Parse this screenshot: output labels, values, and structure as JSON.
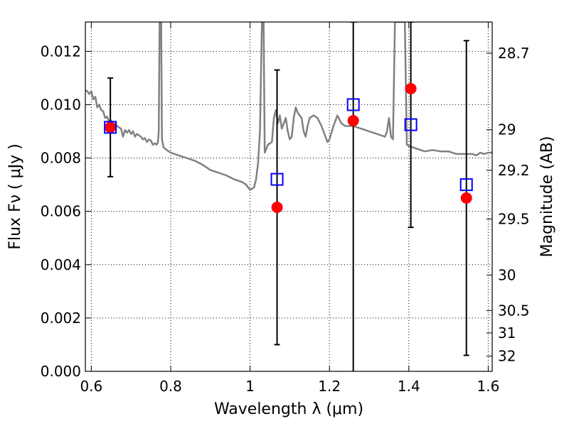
{
  "chart_data": {
    "type": "scatter",
    "xlabel": "Wavelength  λ (μm)",
    "ylabel": "Flux  Fν  ( μJy )",
    "y2label": "Magnitude (AB)",
    "xlim": [
      0.585,
      1.61
    ],
    "ylim": [
      0.0,
      0.0131
    ],
    "grid": true,
    "x_ticks": [
      {
        "value": 0.6,
        "label": "0.6"
      },
      {
        "value": 0.8,
        "label": "0.8"
      },
      {
        "value": 1.0,
        "label": "1"
      },
      {
        "value": 1.2,
        "label": "1.2"
      },
      {
        "value": 1.4,
        "label": "1.4"
      },
      {
        "value": 1.6,
        "label": "1.6"
      }
    ],
    "y_ticks": [
      {
        "value": 0.0,
        "label": "0.000"
      },
      {
        "value": 0.002,
        "label": "0.002"
      },
      {
        "value": 0.004,
        "label": "0.004"
      },
      {
        "value": 0.006,
        "label": "0.006"
      },
      {
        "value": 0.008,
        "label": "0.008"
      },
      {
        "value": 0.01,
        "label": "0.010"
      },
      {
        "value": 0.012,
        "label": "0.012"
      }
    ],
    "y2_ticks": [
      {
        "flux": 0.01193,
        "label": "28.7"
      },
      {
        "flux": 0.00906,
        "label": "29"
      },
      {
        "flux": 0.00754,
        "label": "29.2"
      },
      {
        "flux": 0.00571,
        "label": "29.5"
      },
      {
        "flux": 0.00361,
        "label": "30"
      },
      {
        "flux": 0.00228,
        "label": "30.5"
      },
      {
        "flux": 0.00144,
        "label": "31"
      },
      {
        "flux": 0.00057,
        "label": "32"
      }
    ],
    "series": [
      {
        "kind": "line",
        "color": "#808080",
        "points": [
          [
            0.585,
            0.01055
          ],
          [
            0.59,
            0.0105
          ],
          [
            0.595,
            0.0104
          ],
          [
            0.6,
            0.0105
          ],
          [
            0.605,
            0.0102
          ],
          [
            0.61,
            0.0103
          ],
          [
            0.615,
            0.0099
          ],
          [
            0.62,
            0.01
          ],
          [
            0.625,
            0.0098
          ],
          [
            0.63,
            0.00975
          ],
          [
            0.635,
            0.0095
          ],
          [
            0.64,
            0.00955
          ],
          [
            0.645,
            0.00935
          ],
          [
            0.65,
            0.0094
          ],
          [
            0.655,
            0.0092
          ],
          [
            0.66,
            0.0093
          ],
          [
            0.665,
            0.0092
          ],
          [
            0.67,
            0.00915
          ],
          [
            0.675,
            0.0091
          ],
          [
            0.68,
            0.0088
          ],
          [
            0.685,
            0.00905
          ],
          [
            0.69,
            0.00895
          ],
          [
            0.695,
            0.00905
          ],
          [
            0.7,
            0.0089
          ],
          [
            0.705,
            0.009
          ],
          [
            0.71,
            0.0088
          ],
          [
            0.715,
            0.0089
          ],
          [
            0.72,
            0.00885
          ],
          [
            0.725,
            0.0088
          ],
          [
            0.73,
            0.0087
          ],
          [
            0.735,
            0.00875
          ],
          [
            0.74,
            0.0086
          ],
          [
            0.745,
            0.0087
          ],
          [
            0.75,
            0.00865
          ],
          [
            0.755,
            0.0085
          ],
          [
            0.76,
            0.00855
          ],
          [
            0.765,
            0.0085
          ],
          [
            0.768,
            0.0086
          ],
          [
            0.77,
            0.009
          ],
          [
            0.772,
            0.0131
          ],
          [
            0.776,
            0.0131
          ],
          [
            0.778,
            0.0087
          ],
          [
            0.782,
            0.0084
          ],
          [
            0.79,
            0.0083
          ],
          [
            0.8,
            0.0082
          ],
          [
            0.81,
            0.00815
          ],
          [
            0.82,
            0.0081
          ],
          [
            0.84,
            0.008
          ],
          [
            0.86,
            0.0079
          ],
          [
            0.88,
            0.00775
          ],
          [
            0.9,
            0.00755
          ],
          [
            0.92,
            0.00745
          ],
          [
            0.94,
            0.00735
          ],
          [
            0.96,
            0.0072
          ],
          [
            0.98,
            0.0071
          ],
          [
            0.99,
            0.007
          ],
          [
            1.0,
            0.0068
          ],
          [
            1.01,
            0.0069
          ],
          [
            1.015,
            0.0072
          ],
          [
            1.02,
            0.0078
          ],
          [
            1.025,
            0.009
          ],
          [
            1.03,
            0.0131
          ],
          [
            1.034,
            0.0131
          ],
          [
            1.037,
            0.0082
          ],
          [
            1.045,
            0.0085
          ],
          [
            1.055,
            0.0086
          ],
          [
            1.06,
            0.0095
          ],
          [
            1.065,
            0.0098
          ],
          [
            1.07,
            0.0093
          ],
          [
            1.075,
            0.0096
          ],
          [
            1.08,
            0.0091
          ],
          [
            1.09,
            0.0095
          ],
          [
            1.095,
            0.009
          ],
          [
            1.1,
            0.0087
          ],
          [
            1.105,
            0.0088
          ],
          [
            1.11,
            0.0095
          ],
          [
            1.115,
            0.0099
          ],
          [
            1.12,
            0.0097
          ],
          [
            1.13,
            0.0095
          ],
          [
            1.135,
            0.009
          ],
          [
            1.14,
            0.0088
          ],
          [
            1.145,
            0.0092
          ],
          [
            1.15,
            0.0095
          ],
          [
            1.16,
            0.0096
          ],
          [
            1.17,
            0.0095
          ],
          [
            1.18,
            0.0092
          ],
          [
            1.19,
            0.0088
          ],
          [
            1.195,
            0.0086
          ],
          [
            1.2,
            0.0087
          ],
          [
            1.21,
            0.0092
          ],
          [
            1.22,
            0.0096
          ],
          [
            1.23,
            0.0093
          ],
          [
            1.24,
            0.0092
          ],
          [
            1.26,
            0.0092
          ],
          [
            1.28,
            0.0091
          ],
          [
            1.3,
            0.009
          ],
          [
            1.32,
            0.0089
          ],
          [
            1.34,
            0.0088
          ],
          [
            1.345,
            0.009
          ],
          [
            1.35,
            0.0095
          ],
          [
            1.355,
            0.0088
          ],
          [
            1.36,
            0.0087
          ],
          [
            1.365,
            0.0131
          ],
          [
            1.39,
            0.0131
          ],
          [
            1.395,
            0.0085
          ],
          [
            1.4,
            0.00845
          ],
          [
            1.42,
            0.00835
          ],
          [
            1.44,
            0.00825
          ],
          [
            1.46,
            0.0083
          ],
          [
            1.48,
            0.00825
          ],
          [
            1.5,
            0.00825
          ],
          [
            1.52,
            0.00815
          ],
          [
            1.54,
            0.00815
          ],
          [
            1.56,
            0.00815
          ],
          [
            1.57,
            0.0081
          ],
          [
            1.58,
            0.0082
          ],
          [
            1.59,
            0.00815
          ],
          [
            1.6,
            0.0082
          ],
          [
            1.61,
            0.0082
          ]
        ]
      },
      {
        "kind": "errorbar",
        "color": "#000000",
        "points": [
          {
            "x": 0.648,
            "low": 0.0073,
            "high": 0.011
          },
          {
            "x": 1.068,
            "low": 0.001,
            "high": 0.0113
          },
          {
            "x": 1.26,
            "low": -0.0005,
            "high": 0.0131
          },
          {
            "x": 1.405,
            "low": 0.0054,
            "high": 0.0131
          },
          {
            "x": 1.545,
            "low": 0.0006,
            "high": 0.0124
          }
        ]
      },
      {
        "kind": "scatter",
        "marker": "circle",
        "color": "#ff0000",
        "points": [
          [
            0.648,
            0.00915
          ],
          [
            1.068,
            0.00615
          ],
          [
            1.26,
            0.0094
          ],
          [
            1.405,
            0.0106
          ],
          [
            1.545,
            0.0065
          ]
        ]
      },
      {
        "kind": "scatter",
        "marker": "square",
        "color": "#0000ff",
        "points": [
          [
            0.648,
            0.00915
          ],
          [
            1.068,
            0.0072
          ],
          [
            1.26,
            0.01
          ],
          [
            1.405,
            0.00925
          ],
          [
            1.545,
            0.007
          ]
        ]
      }
    ]
  }
}
